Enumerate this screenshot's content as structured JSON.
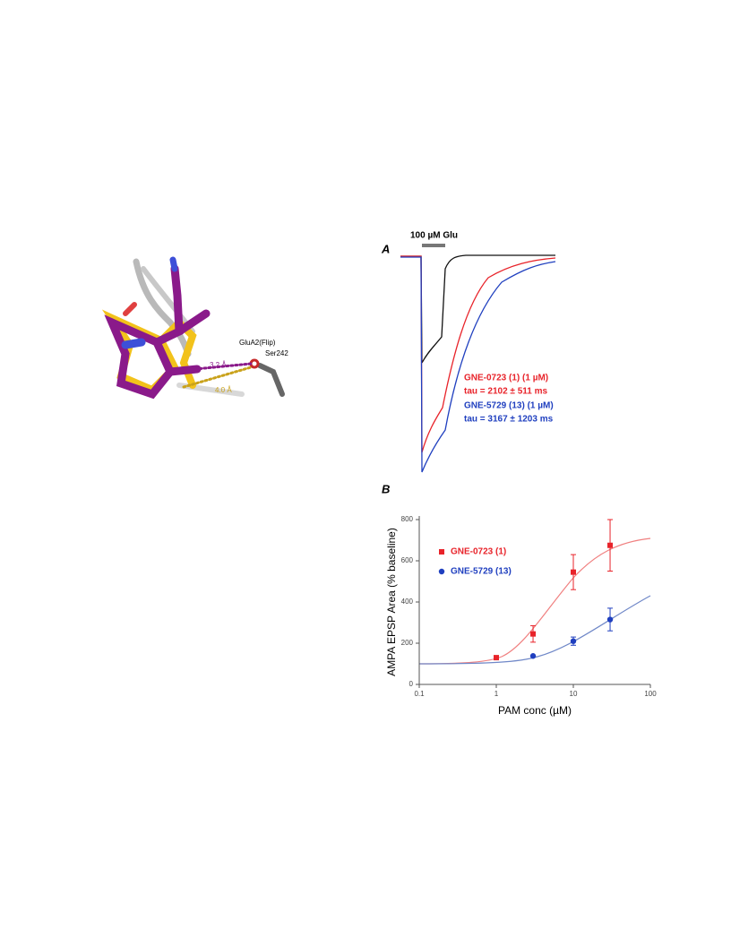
{
  "structure_figure": {
    "residue": "GluA2(Flip)",
    "residue_number": "Ser242",
    "distance_purple": "3.2 Å",
    "distance_gold": "4.0 Å"
  },
  "panel_a": {
    "label": "A",
    "stimulus": "100 µM Glu",
    "annotations": [
      "GNE-0723 (1) (1 µM)",
      "tau = 2102 ± 511 ms",
      "GNE-5729 (13) (1 µM)",
      "tau = 3167 ± 1203 ms"
    ]
  },
  "chart_data": {
    "type": "scatter",
    "panel_label": "B",
    "x_label": "PAM conc (µM)",
    "y_label": "AMPA EPSP Area (% baseline)",
    "log_x": true,
    "xlim": [
      0.1,
      100
    ],
    "xticks": [
      0.1,
      1,
      10,
      100
    ],
    "ylim": [
      0,
      800
    ],
    "yticks": [
      0,
      200,
      400,
      600,
      800
    ],
    "grid": false,
    "series": [
      {
        "name": "GNE-0723 (1)",
        "color": "#e8232a",
        "marker": "square",
        "x": [
          1,
          3,
          10,
          30
        ],
        "values": [
          130,
          245,
          545,
          675
        ],
        "errors": [
          null,
          40,
          85,
          125
        ]
      },
      {
        "name": "GNE-5729 (13)",
        "color": "#1f3fbf",
        "marker": "circle",
        "x": [
          3,
          10,
          30
        ],
        "values": [
          138,
          210,
          315
        ],
        "errors": [
          null,
          20,
          55
        ]
      }
    ]
  }
}
